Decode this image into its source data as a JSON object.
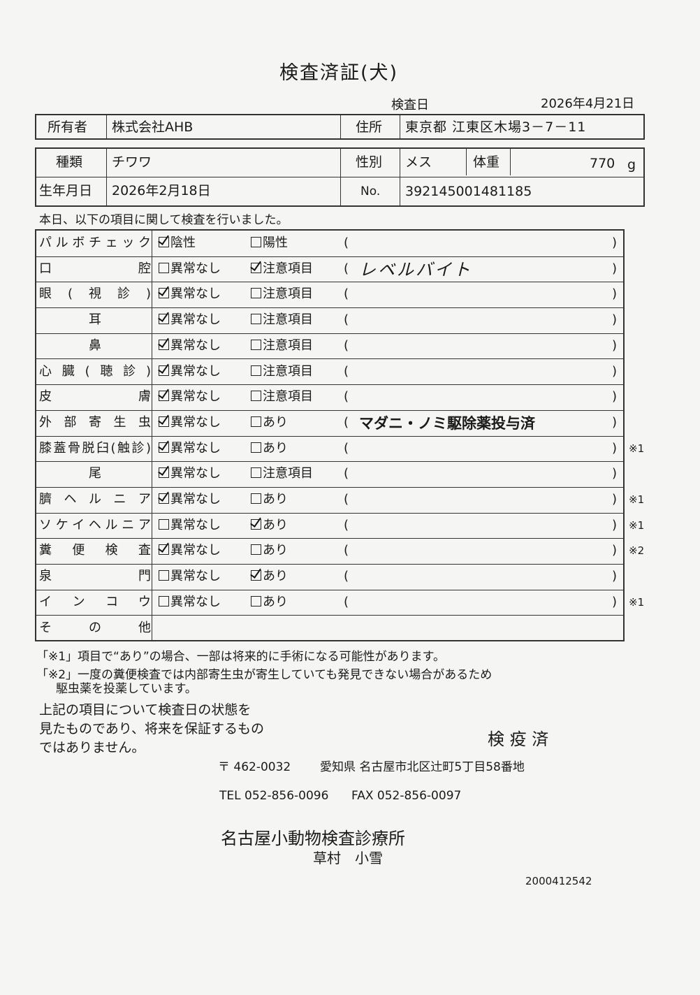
{
  "title": "検査済証(犬)",
  "exam_date_label": "検査日",
  "exam_date": "2026年4月21日",
  "owner": {
    "label": "所有者",
    "value": "株式会社AHB",
    "address_label": "住所",
    "address": "東京都 江東区木場3－7－11"
  },
  "animal": {
    "breed_label": "種類",
    "breed": "チワワ",
    "sex_label": "性別",
    "sex": "メス",
    "weight_label": "体重",
    "weight": "770",
    "weight_unit": "g",
    "birth_label": "生年月日",
    "birth": "2026年2月18日",
    "no_label": "No.",
    "no": "392145001481185"
  },
  "intro": "本日、以下の項目に関して検査を行いました。",
  "items": [
    {
      "label": "パルボチェック",
      "opt1": "陰性",
      "opt2": "陽性",
      "checked": 1,
      "note": "",
      "mark": ""
    },
    {
      "label": "口腔",
      "opt1": "異常なし",
      "opt2": "注意項目",
      "checked": 2,
      "note": "レベルバイト",
      "handwritten": true,
      "mark": ""
    },
    {
      "label": "眼(視診)",
      "opt1": "異常なし",
      "opt2": "注意項目",
      "checked": 1,
      "note": "",
      "mark": ""
    },
    {
      "label": "耳",
      "opt1": "異常なし",
      "opt2": "注意項目",
      "checked": 1,
      "note": "",
      "mark": "",
      "center": true
    },
    {
      "label": "鼻",
      "opt1": "異常なし",
      "opt2": "注意項目",
      "checked": 1,
      "note": "",
      "mark": "",
      "center": true
    },
    {
      "label": "心臓(聴診)",
      "opt1": "異常なし",
      "opt2": "注意項目",
      "checked": 1,
      "note": "",
      "mark": ""
    },
    {
      "label": "皮膚",
      "opt1": "異常なし",
      "opt2": "注意項目",
      "checked": 1,
      "note": "",
      "mark": ""
    },
    {
      "label": "外部寄生虫",
      "opt1": "異常なし",
      "opt2": "あり",
      "checked": 1,
      "note": "マダニ・ノミ駆除薬投与済",
      "mark": ""
    },
    {
      "label": "膝蓋骨脱臼(触診)",
      "opt1": "異常なし",
      "opt2": "あり",
      "checked": 1,
      "note": "",
      "mark": "※1"
    },
    {
      "label": "尾",
      "opt1": "異常なし",
      "opt2": "注意項目",
      "checked": 1,
      "note": "",
      "mark": "",
      "center": true
    },
    {
      "label": "臍ヘルニア",
      "opt1": "異常なし",
      "opt2": "あり",
      "checked": 1,
      "note": "",
      "mark": "※1"
    },
    {
      "label": "ソケイヘルニア",
      "opt1": "異常なし",
      "opt2": "あり",
      "checked": 2,
      "note": "",
      "mark": "※1"
    },
    {
      "label": "糞便検査",
      "opt1": "異常なし",
      "opt2": "あり",
      "checked": 1,
      "note": "",
      "mark": "※2"
    },
    {
      "label": "泉門",
      "opt1": "異常なし",
      "opt2": "あり",
      "checked": 2,
      "note": "",
      "mark": ""
    },
    {
      "label": "インコウ",
      "opt1": "異常なし",
      "opt2": "あり",
      "checked": 0,
      "note": "",
      "mark": "※1"
    },
    {
      "label": "その他",
      "other": true
    }
  ],
  "paren_open": "(",
  "paren_close": ")",
  "footnote1": "「※1」項目で“あり”の場合、一部は将来的に手術になる可能性があります。",
  "footnote2a": "「※2」一度の糞便検査では内部寄生虫が寄生していても発見できない場合があるため",
  "footnote2b": "駆虫薬を投薬しています。",
  "disclaimer": [
    "上記の項目について検査日の状態を",
    "見たものであり、将来を保証するもの",
    "ではありません。"
  ],
  "stamp": "検 疫 済",
  "clinic": {
    "postal": "〒 462-0032",
    "address": "愛知県 名古屋市北区辻町5丁目58番地",
    "tel": "TEL 052-856-0096",
    "fax": "FAX 052-856-0097",
    "name": "名古屋小動物検査診療所",
    "person": "草村　小雪"
  },
  "doc_number": "2000412542"
}
